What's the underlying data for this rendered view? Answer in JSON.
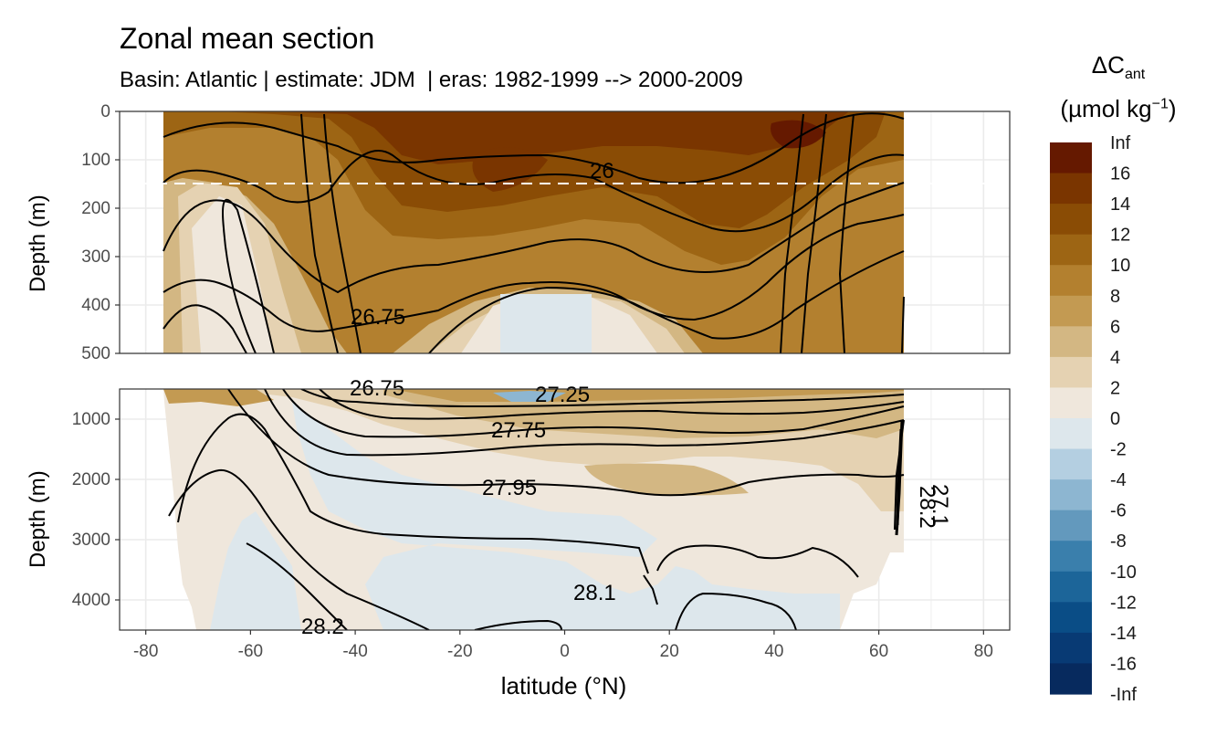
{
  "chart_data": {
    "type": "heatmap",
    "title": "Zonal mean section",
    "subtitle": "Basin: Atlantic | estimate: JDM  | eras: 1982-1999 --> 2000-2009",
    "xlabel": "latitude (°N)",
    "ylabel_top": "Depth (m)",
    "ylabel_bottom": "Depth (m)",
    "xlim": [
      -85,
      85
    ],
    "xticks": [
      "-80",
      "-60",
      "-40",
      "-20",
      "0",
      "20",
      "40",
      "60",
      "80"
    ],
    "panels": [
      {
        "name": "upper",
        "ylim": [
          0,
          500
        ],
        "yticks": [
          "0",
          "100",
          "200",
          "300",
          "400",
          "500"
        ],
        "dashed_line_depth": 150
      },
      {
        "name": "lower",
        "ylim": [
          500,
          4500
        ],
        "yticks": [
          "1000",
          "2000",
          "3000",
          "4000"
        ]
      }
    ],
    "data_extent_latitude": [
      -77,
      64
    ],
    "legend": {
      "title_main": "ΔC",
      "title_sub": "ant",
      "title_unit_pre": "(µmol kg",
      "title_unit_sup": "−1",
      "title_unit_post": ")",
      "labels": [
        "Inf",
        "16",
        "14",
        "12",
        "10",
        "8",
        "6",
        "4",
        "2",
        "0",
        "-2",
        "-4",
        "-6",
        "-8",
        "-10",
        "-12",
        "-14",
        "-16",
        "-Inf"
      ],
      "colors": [
        "#651900",
        "#7a3500",
        "#8a4c05",
        "#9d6514",
        "#b3802f",
        "#c39a52",
        "#d3b783",
        "#e5d2b2",
        "#efe7dc",
        "#dde7ec",
        "#b4cfe1",
        "#8db6d1",
        "#6399bd",
        "#3a7fac",
        "#1c6599",
        "#0a4d86",
        "#083a74",
        "#072a5e",
        "#061c52"
      ]
    },
    "isopycnal_labels_upper": [
      "26",
      "26.75"
    ],
    "isopycnal_labels_lower": [
      "26.75",
      "27.25",
      "27.75",
      "27.95",
      "28.1",
      "28.2",
      "28.2",
      "27.1"
    ]
  },
  "colors": {
    "panel_border": "#333333",
    "grid": "#ebebeb",
    "dashed_line": "#ffffff"
  }
}
